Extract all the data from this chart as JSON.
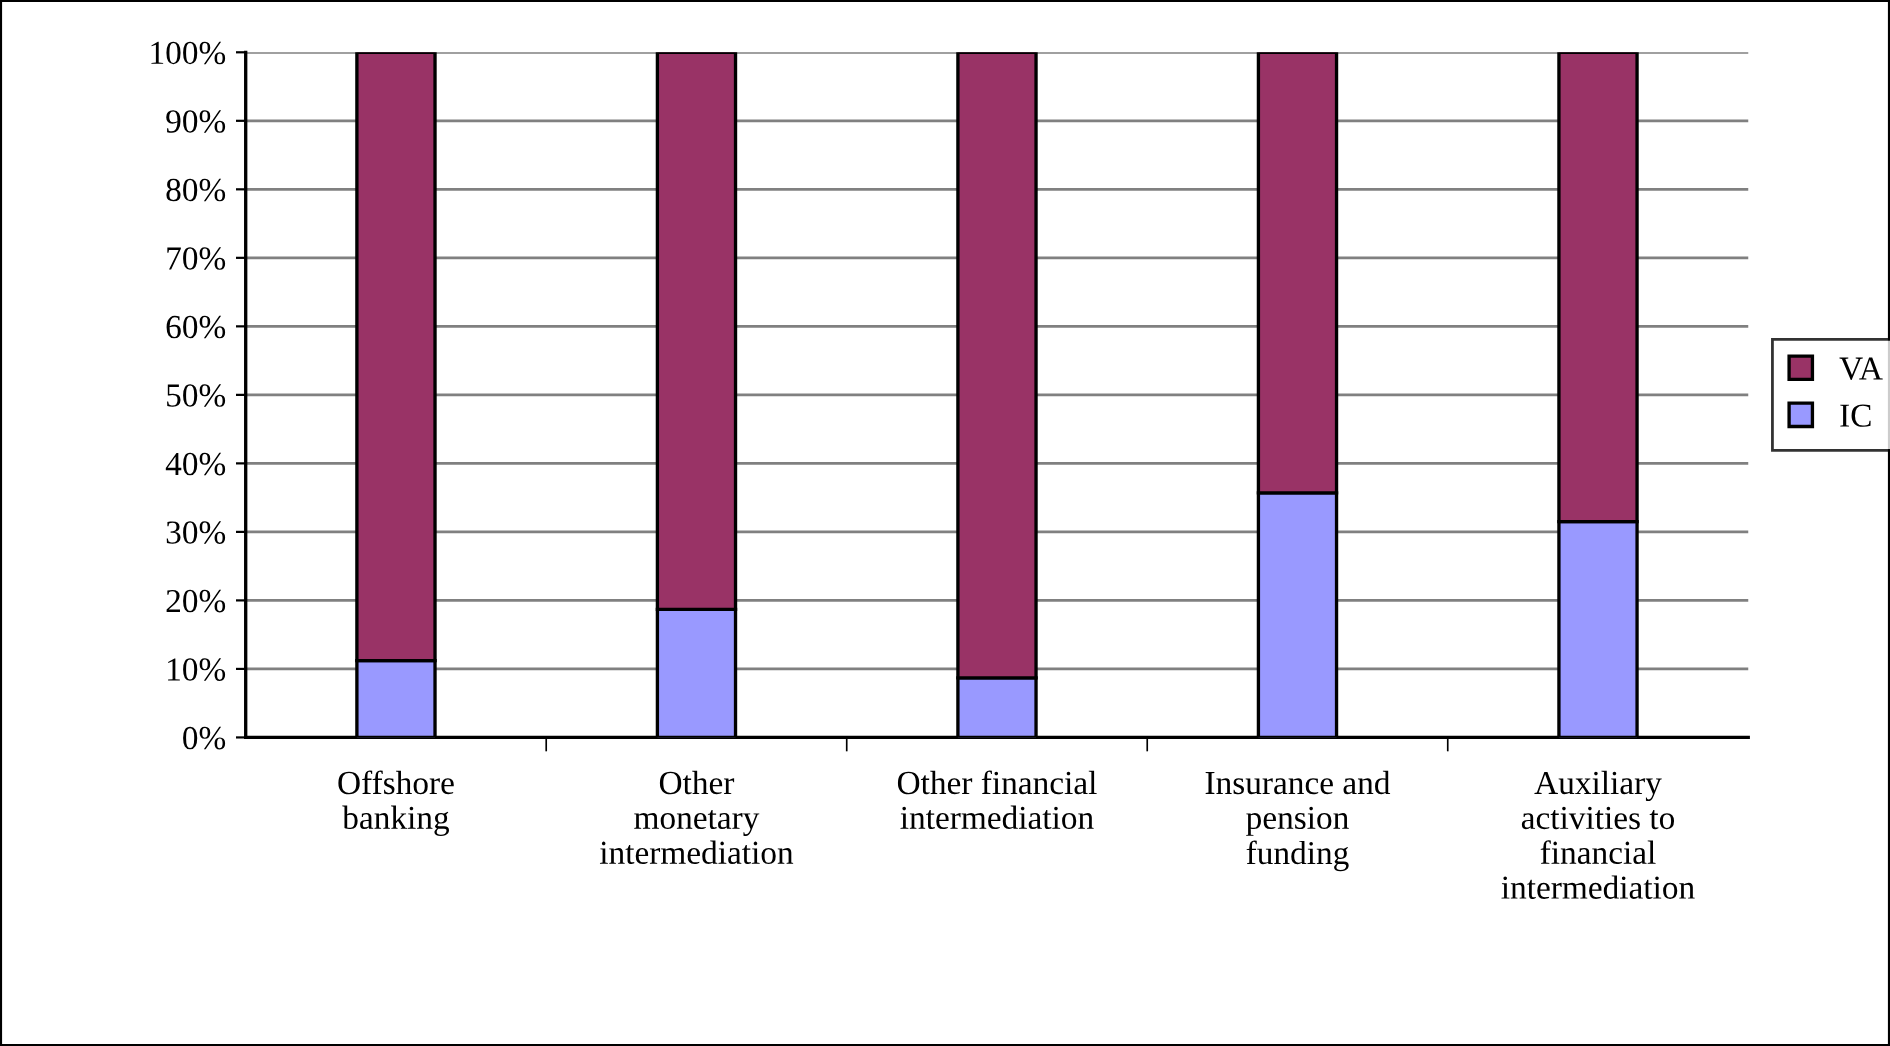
{
  "chart_data": {
    "type": "bar",
    "stacked": true,
    "categories": [
      "Offshore\nbanking",
      "Other\nmonetary\nintermediation",
      "Other financial\nintermediation",
      "Insurance and\npension\nfunding",
      "Auxiliary\nactivities to\nfinancial\nintermediation"
    ],
    "series": [
      {
        "name": "IC",
        "color": "#9999ff",
        "values": [
          11.2,
          18.7,
          8.7,
          35.7,
          31.5
        ]
      },
      {
        "name": "VA",
        "color": "#993366",
        "values": [
          88.8,
          81.3,
          91.3,
          64.3,
          68.5
        ]
      }
    ],
    "ylim": [
      0,
      100
    ],
    "yticks": [
      {
        "value": 0,
        "label": "0%"
      },
      {
        "value": 10,
        "label": "10%"
      },
      {
        "value": 20,
        "label": "20%"
      },
      {
        "value": 30,
        "label": "30%"
      },
      {
        "value": 40,
        "label": "40%"
      },
      {
        "value": 50,
        "label": "50%"
      },
      {
        "value": 60,
        "label": "60%"
      },
      {
        "value": 70,
        "label": "70%"
      },
      {
        "value": 80,
        "label": "80%"
      },
      {
        "value": 90,
        "label": "90%"
      },
      {
        "value": 100,
        "label": "100%"
      }
    ],
    "grid": "y",
    "legend": "right"
  }
}
